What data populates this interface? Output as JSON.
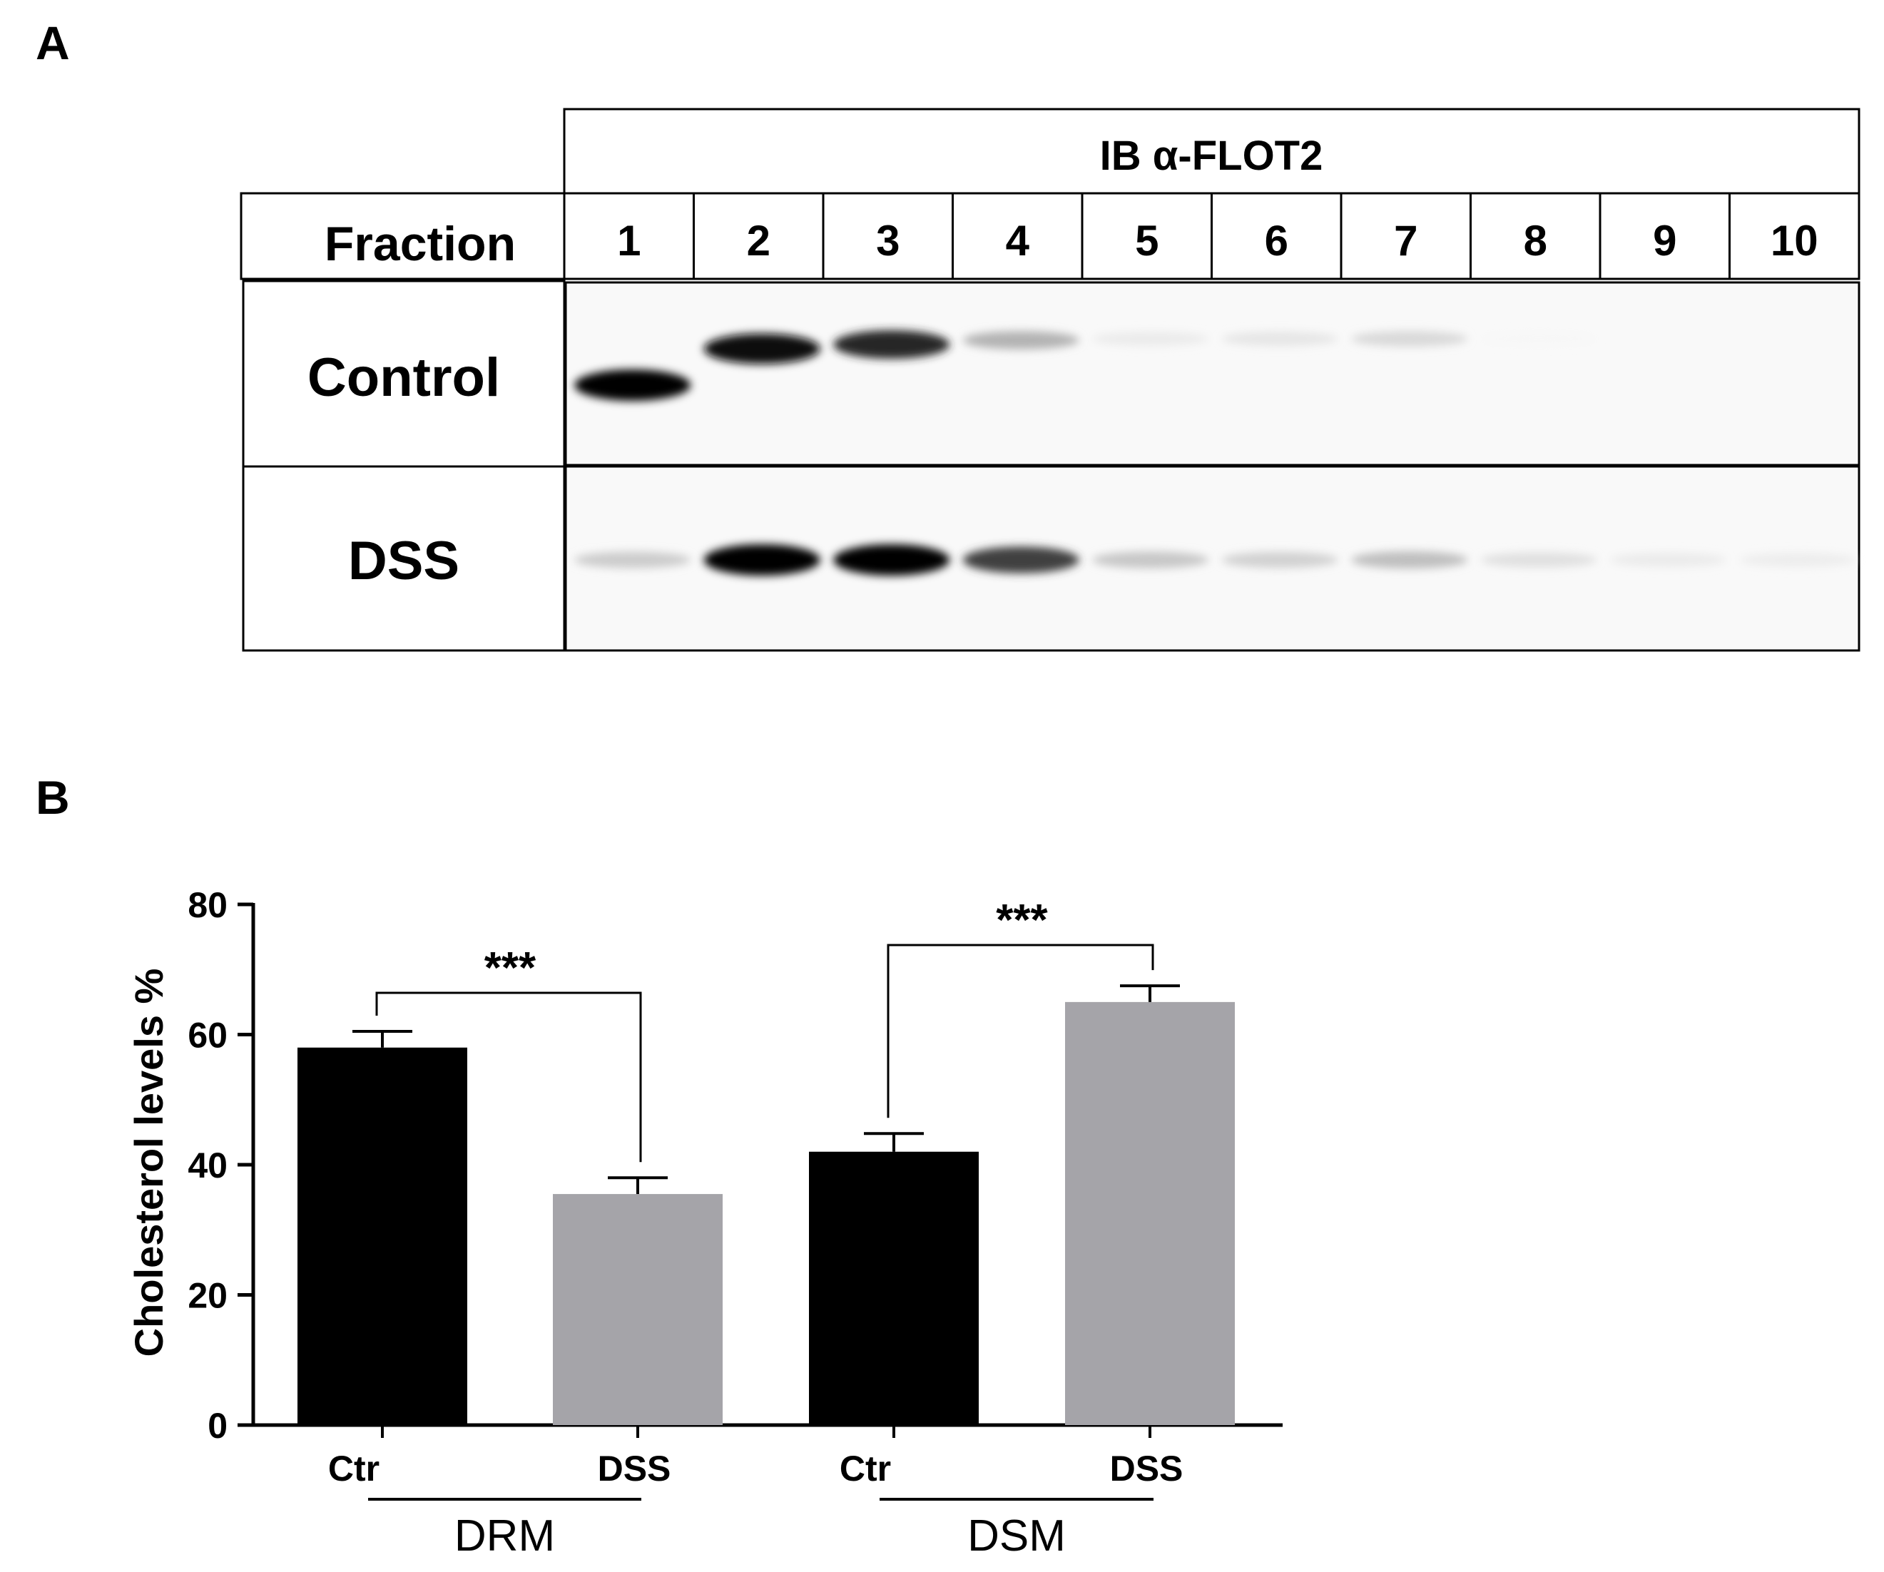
{
  "panels": {
    "a_label": "A",
    "b_label": "B"
  },
  "blot": {
    "antibody": "IB α-FLOT2",
    "fraction_label": "Fraction",
    "fractions": [
      "1",
      "2",
      "3",
      "4",
      "5",
      "6",
      "7",
      "8",
      "9",
      "10"
    ],
    "rows": [
      {
        "label": "Control",
        "band_intensity": [
          1.0,
          0.95,
          0.85,
          0.3,
          0.08,
          0.1,
          0.15,
          0.03,
          0.0,
          0.0
        ]
      },
      {
        "label": "DSS",
        "band_intensity": [
          0.2,
          1.0,
          1.0,
          0.75,
          0.22,
          0.18,
          0.25,
          0.12,
          0.08,
          0.07
        ]
      }
    ]
  },
  "chart_data": {
    "type": "bar",
    "ylabel": "Cholesterol levels %",
    "ylim": [
      0,
      80
    ],
    "yticks": [
      "0",
      "20",
      "40",
      "60",
      "80"
    ],
    "bars": [
      {
        "label": "Ctr",
        "group": "DRM",
        "value": 58,
        "error": 2.5,
        "color": "#000000"
      },
      {
        "label": "DSS",
        "group": "DRM",
        "value": 35.5,
        "error": 2.5,
        "color": "#a5a4a9"
      },
      {
        "label": "Ctr",
        "group": "DSM",
        "value": 42,
        "error": 2.8,
        "color": "#000000"
      },
      {
        "label": "DSS",
        "group": "DSM",
        "value": 65,
        "error": 2.5,
        "color": "#a5a4a9"
      }
    ],
    "groups": [
      "DRM",
      "DSM"
    ],
    "significance": [
      {
        "from": 0,
        "to": 1,
        "label": "***"
      },
      {
        "from": 2,
        "to": 3,
        "label": "***"
      }
    ]
  }
}
